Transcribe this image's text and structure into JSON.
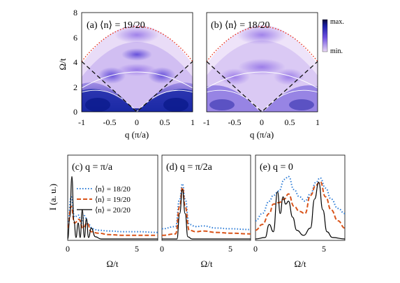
{
  "colors": {
    "blue_dotted": "#2b7bd6",
    "orange_dashed": "#d95319",
    "black_solid": "#000000",
    "red_dotted": "#e8301e",
    "map_max": "#0b1a8c",
    "map_min": "#ead9f6"
  },
  "top": {
    "panel_a": {
      "label": "(a)  ⟨n⟩ = 19/20"
    },
    "panel_b": {
      "label": "(b)  ⟨n⟩ = 18/20"
    },
    "ylabel": "Ω/t",
    "xlabel": "q (π/a)",
    "colorbar": {
      "max": "max.",
      "min": "min."
    },
    "xticks": [
      "-1",
      "-0.5",
      "0",
      "0.5",
      "1"
    ],
    "yticks": [
      "0",
      "2",
      "4",
      "6",
      "8"
    ]
  },
  "bottom": {
    "ylabel": "I (a. u.)",
    "xlabel": "Ω/t",
    "panel_c": {
      "label": "(c)  q = π/a",
      "xticks": [
        "0",
        "5"
      ]
    },
    "panel_d": {
      "label": "(d)  q = π/2a",
      "xticks": [
        "0",
        "5"
      ]
    },
    "panel_e": {
      "label": "(e)  q = 0",
      "xticks": [
        "0",
        "5"
      ]
    },
    "legend": [
      "⟨n⟩ = 18/20",
      "⟨n⟩ = 19/20",
      "⟨n⟩ = 20/20"
    ]
  },
  "chart_data": [
    {
      "type": "heatmap",
      "title": "(a) ⟨n⟩ = 19/20",
      "xlabel": "q (π/a)",
      "ylabel": "Ω/t",
      "xlim": [
        -1,
        1
      ],
      "ylim": [
        0,
        8
      ]
    },
    {
      "type": "heatmap",
      "title": "(b) ⟨n⟩ = 18/20",
      "xlabel": "q (π/a)",
      "ylabel": "Ω/t",
      "xlim": [
        -1,
        1
      ],
      "ylim": [
        0,
        8
      ]
    },
    {
      "type": "line",
      "title": "(c) q = π/a",
      "xlabel": "Ω/t",
      "ylabel": "I (a. u.)",
      "xlim": [
        0,
        6.5
      ],
      "series": [
        {
          "name": "⟨n⟩ = 18/20",
          "x": [
            0,
            0.25,
            0.5,
            0.75,
            1.0,
            1.2,
            1.5,
            1.8,
            2.2,
            3,
            4,
            5,
            6.5
          ],
          "y": [
            0.2,
            0.58,
            0.3,
            0.33,
            0.22,
            0.32,
            0.2,
            0.14,
            0.12,
            0.11,
            0.1,
            0.1,
            0.09
          ]
        },
        {
          "name": "⟨n⟩ = 19/20",
          "x": [
            0,
            0.25,
            0.5,
            0.8,
            1.1,
            1.4,
            1.7,
            2.2,
            3,
            4,
            5,
            6.5
          ],
          "y": [
            0.16,
            0.45,
            0.22,
            0.27,
            0.15,
            0.22,
            0.1,
            0.08,
            0.06,
            0.05,
            0.05,
            0.05
          ]
        },
        {
          "name": "⟨n⟩ = 20/20",
          "x": [
            0,
            0.15,
            0.3,
            0.45,
            0.6,
            0.75,
            0.9,
            1.05,
            1.2,
            1.35,
            1.5,
            1.7,
            2.0,
            2.4,
            6.5
          ],
          "y": [
            0,
            0.3,
            0.86,
            0.25,
            0.02,
            0.22,
            0.02,
            0.4,
            0.02,
            0.28,
            0.02,
            0.15,
            0.03,
            0,
            0
          ]
        }
      ]
    },
    {
      "type": "line",
      "title": "(d) q = π/2a",
      "xlabel": "Ω/t",
      "ylabel": "I (a. u.)",
      "xlim": [
        0,
        6.5
      ],
      "series": [
        {
          "name": "⟨n⟩ = 18/20",
          "x": [
            0,
            1,
            1.3,
            1.5,
            1.7,
            2,
            2.5,
            3,
            4,
            5,
            6.5
          ],
          "y": [
            0.14,
            0.17,
            0.55,
            0.76,
            0.55,
            0.2,
            0.17,
            0.18,
            0.15,
            0.14,
            0.13
          ]
        },
        {
          "name": "⟨n⟩ = 19/20",
          "x": [
            0,
            1,
            1.3,
            1.5,
            1.7,
            2,
            2.5,
            3,
            4,
            5,
            6.5
          ],
          "y": [
            0.05,
            0.07,
            0.45,
            0.71,
            0.45,
            0.12,
            0.1,
            0.11,
            0.09,
            0.08,
            0.07
          ]
        },
        {
          "name": "⟨n⟩ = 20/20",
          "x": [
            0,
            1.1,
            1.3,
            1.5,
            1.7,
            1.9,
            2.2,
            6.5
          ],
          "y": [
            0,
            0,
            0.35,
            0.68,
            0.35,
            0.03,
            0,
            0
          ]
        }
      ]
    },
    {
      "type": "line",
      "title": "(e) q = 0",
      "xlabel": "Ω/t",
      "ylabel": "I (a. u.)",
      "xlim": [
        0,
        6.5
      ],
      "series": [
        {
          "name": "⟨n⟩ = 18/20",
          "x": [
            0,
            0.5,
            1,
            1.3,
            1.7,
            2.1,
            2.4,
            2.8,
            3.2,
            3.6,
            4,
            4.4,
            4.7,
            5.1,
            5.5,
            6,
            6.5
          ],
          "y": [
            0.25,
            0.35,
            0.52,
            0.6,
            0.66,
            0.82,
            0.86,
            0.68,
            0.58,
            0.52,
            0.62,
            0.78,
            0.84,
            0.7,
            0.55,
            0.42,
            0.35
          ]
        },
        {
          "name": "⟨n⟩ = 19/20",
          "x": [
            0,
            0.5,
            1,
            1.3,
            1.7,
            2.1,
            2.4,
            2.8,
            3.2,
            3.6,
            4,
            4.4,
            4.7,
            5.1,
            5.5,
            6,
            6.5
          ],
          "y": [
            0.12,
            0.2,
            0.35,
            0.48,
            0.5,
            0.55,
            0.62,
            0.45,
            0.38,
            0.35,
            0.6,
            0.74,
            0.79,
            0.58,
            0.4,
            0.25,
            0.15
          ]
        },
        {
          "name": "⟨n⟩ = 20/20",
          "x": [
            0,
            0.7,
            1,
            1.3,
            1.6,
            1.8,
            2,
            2.2,
            2.4,
            2.7,
            3,
            3.5,
            4,
            4.3,
            4.6,
            4.9,
            5.2,
            5.6,
            6.5
          ],
          "y": [
            0,
            0.02,
            0.2,
            0.1,
            0.65,
            0.35,
            0.58,
            0.48,
            0.52,
            0.3,
            0.12,
            0.05,
            0.15,
            0.55,
            0.78,
            0.4,
            0.1,
            0.02,
            0
          ]
        }
      ]
    }
  ]
}
